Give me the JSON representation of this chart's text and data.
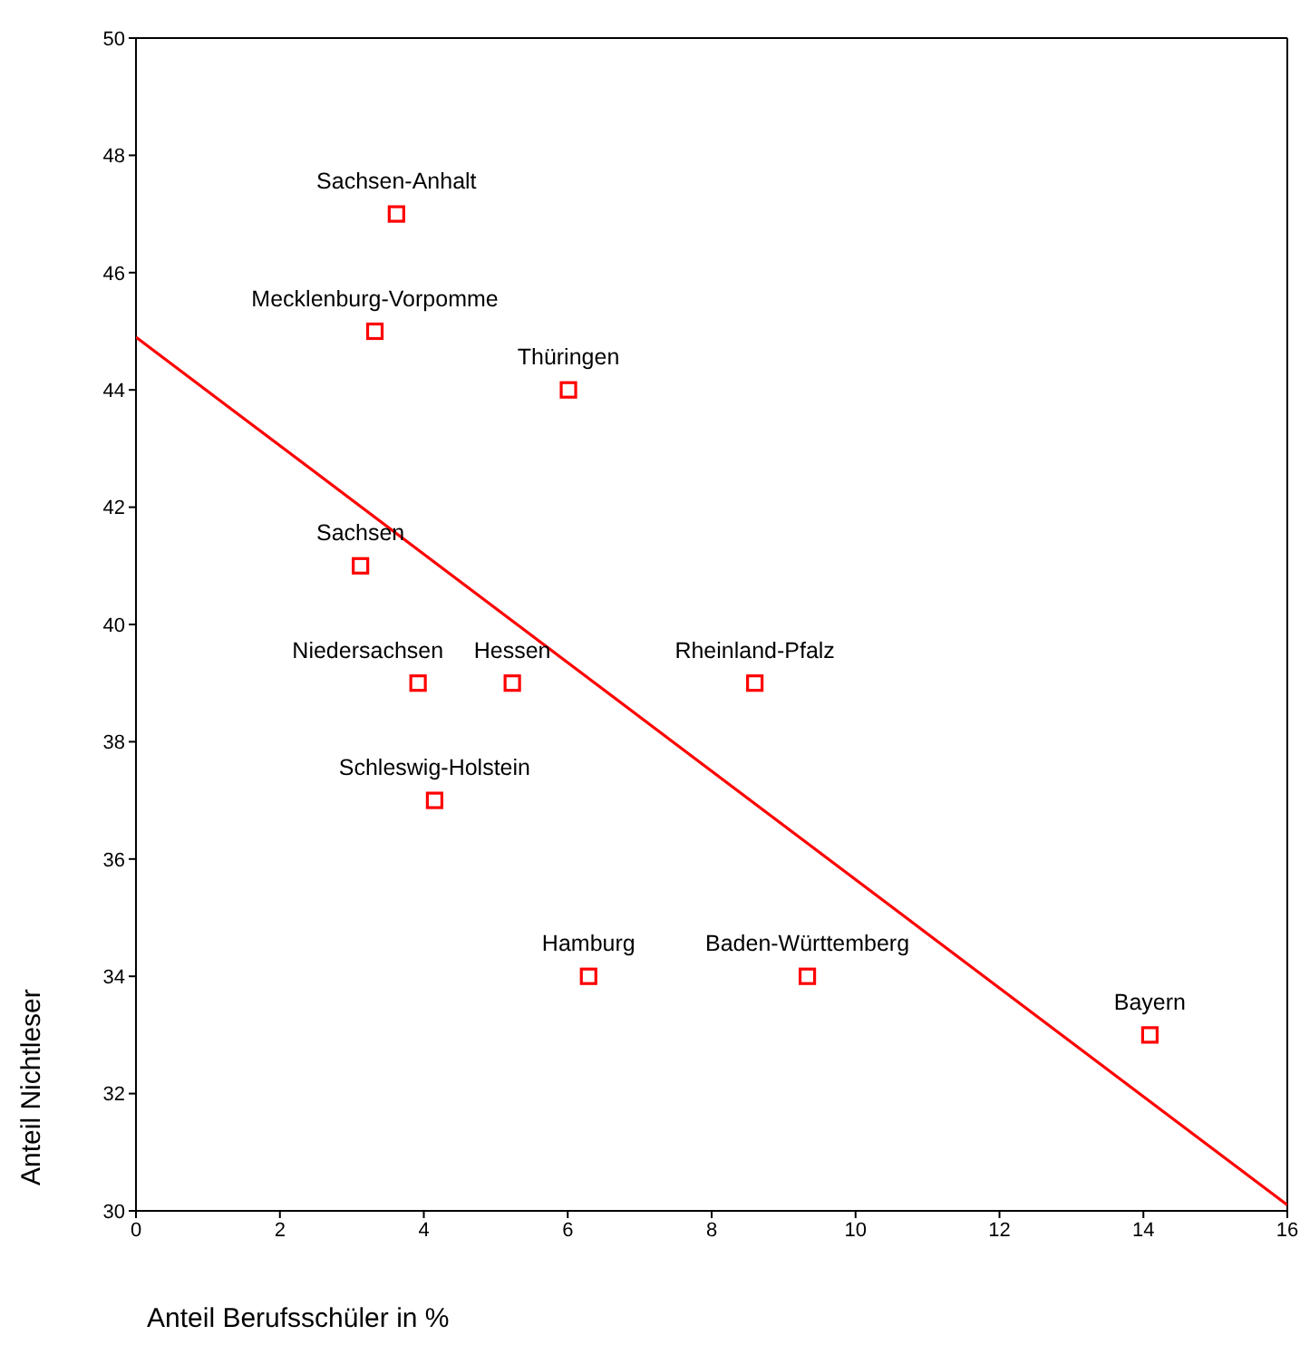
{
  "chart_data": {
    "type": "scatter",
    "xlabel": "Anteil Berufsschüler in %",
    "ylabel": "Anteil Nichtleser",
    "xlim": [
      0,
      16
    ],
    "xticks": [
      0,
      2,
      4,
      6,
      8,
      10,
      12,
      14,
      16
    ],
    "ylim": [
      30,
      50
    ],
    "yticks": [
      30,
      32,
      34,
      36,
      38,
      40,
      42,
      44,
      46,
      48,
      50
    ],
    "grid": false,
    "series": [
      {
        "color": "#ff0000",
        "marker": "square",
        "x": [
          3.62,
          3.32,
          6.01,
          3.12,
          3.92,
          5.23,
          8.6,
          4.15,
          6.29,
          9.33,
          14.09
        ],
        "values": [
          47,
          45,
          44,
          41,
          39,
          39,
          39,
          37,
          34,
          34,
          33
        ]
      },
      {
        "type": "line",
        "color": "#ff0000",
        "marker": "none",
        "x": [
          0,
          16
        ],
        "values": [
          44.9,
          30.1
        ]
      }
    ],
    "annotations": [
      {
        "text": "Sachsen-Anhalt",
        "x": 3.62,
        "y": 47
      },
      {
        "text": "Mecklenburg-Vorpomme",
        "x": 3.32,
        "y": 45
      },
      {
        "text": "Thüringen",
        "x": 6.01,
        "y": 44
      },
      {
        "text": "Sachsen",
        "x": 3.12,
        "y": 41
      },
      {
        "text": "Niedersachsen",
        "x": 3.92,
        "y": 39
      },
      {
        "text": "Hessen",
        "x": 5.23,
        "y": 39
      },
      {
        "text": "Rheinland-Pfalz",
        "x": 8.6,
        "y": 39
      },
      {
        "text": "Schleswig-Holstein",
        "x": 4.15,
        "y": 37
      },
      {
        "text": "Hamburg",
        "x": 6.29,
        "y": 34
      },
      {
        "text": "Baden-Württemberg",
        "x": 9.33,
        "y": 34
      },
      {
        "text": "Bayern",
        "x": 14.09,
        "y": 33
      }
    ]
  }
}
